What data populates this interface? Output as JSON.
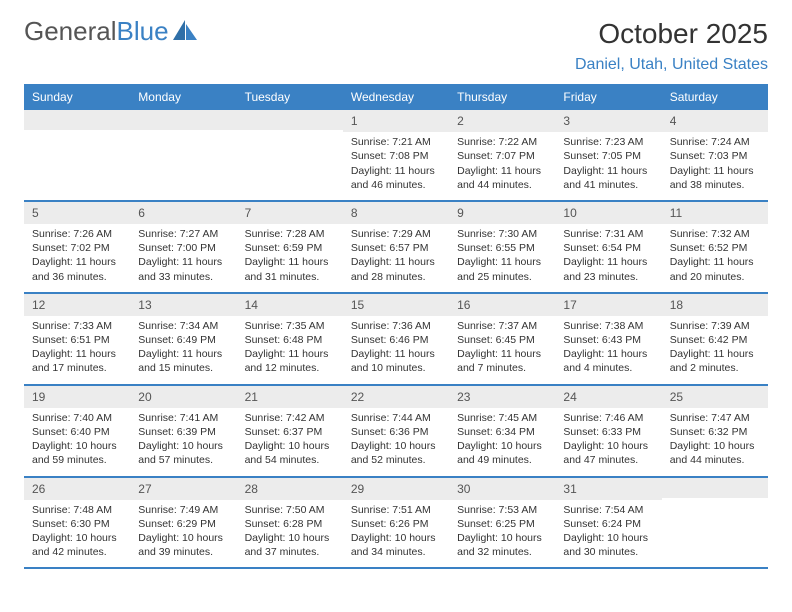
{
  "logo": {
    "word1": "General",
    "word2": "Blue"
  },
  "title": "October 2025",
  "location": "Daniel, Utah, United States",
  "colors": {
    "header_bg": "#3a81c4",
    "header_text": "#ffffff",
    "daynum_bg": "#ececec",
    "border": "#3a81c4",
    "text": "#333333",
    "link": "#3a81c4"
  },
  "day_names": [
    "Sunday",
    "Monday",
    "Tuesday",
    "Wednesday",
    "Thursday",
    "Friday",
    "Saturday"
  ],
  "weeks": [
    [
      {
        "n": "",
        "sr": "",
        "ss": "",
        "dl": ""
      },
      {
        "n": "",
        "sr": "",
        "ss": "",
        "dl": ""
      },
      {
        "n": "",
        "sr": "",
        "ss": "",
        "dl": ""
      },
      {
        "n": "1",
        "sr": "Sunrise: 7:21 AM",
        "ss": "Sunset: 7:08 PM",
        "dl": "Daylight: 11 hours and 46 minutes."
      },
      {
        "n": "2",
        "sr": "Sunrise: 7:22 AM",
        "ss": "Sunset: 7:07 PM",
        "dl": "Daylight: 11 hours and 44 minutes."
      },
      {
        "n": "3",
        "sr": "Sunrise: 7:23 AM",
        "ss": "Sunset: 7:05 PM",
        "dl": "Daylight: 11 hours and 41 minutes."
      },
      {
        "n": "4",
        "sr": "Sunrise: 7:24 AM",
        "ss": "Sunset: 7:03 PM",
        "dl": "Daylight: 11 hours and 38 minutes."
      }
    ],
    [
      {
        "n": "5",
        "sr": "Sunrise: 7:26 AM",
        "ss": "Sunset: 7:02 PM",
        "dl": "Daylight: 11 hours and 36 minutes."
      },
      {
        "n": "6",
        "sr": "Sunrise: 7:27 AM",
        "ss": "Sunset: 7:00 PM",
        "dl": "Daylight: 11 hours and 33 minutes."
      },
      {
        "n": "7",
        "sr": "Sunrise: 7:28 AM",
        "ss": "Sunset: 6:59 PM",
        "dl": "Daylight: 11 hours and 31 minutes."
      },
      {
        "n": "8",
        "sr": "Sunrise: 7:29 AM",
        "ss": "Sunset: 6:57 PM",
        "dl": "Daylight: 11 hours and 28 minutes."
      },
      {
        "n": "9",
        "sr": "Sunrise: 7:30 AM",
        "ss": "Sunset: 6:55 PM",
        "dl": "Daylight: 11 hours and 25 minutes."
      },
      {
        "n": "10",
        "sr": "Sunrise: 7:31 AM",
        "ss": "Sunset: 6:54 PM",
        "dl": "Daylight: 11 hours and 23 minutes."
      },
      {
        "n": "11",
        "sr": "Sunrise: 7:32 AM",
        "ss": "Sunset: 6:52 PM",
        "dl": "Daylight: 11 hours and 20 minutes."
      }
    ],
    [
      {
        "n": "12",
        "sr": "Sunrise: 7:33 AM",
        "ss": "Sunset: 6:51 PM",
        "dl": "Daylight: 11 hours and 17 minutes."
      },
      {
        "n": "13",
        "sr": "Sunrise: 7:34 AM",
        "ss": "Sunset: 6:49 PM",
        "dl": "Daylight: 11 hours and 15 minutes."
      },
      {
        "n": "14",
        "sr": "Sunrise: 7:35 AM",
        "ss": "Sunset: 6:48 PM",
        "dl": "Daylight: 11 hours and 12 minutes."
      },
      {
        "n": "15",
        "sr": "Sunrise: 7:36 AM",
        "ss": "Sunset: 6:46 PM",
        "dl": "Daylight: 11 hours and 10 minutes."
      },
      {
        "n": "16",
        "sr": "Sunrise: 7:37 AM",
        "ss": "Sunset: 6:45 PM",
        "dl": "Daylight: 11 hours and 7 minutes."
      },
      {
        "n": "17",
        "sr": "Sunrise: 7:38 AM",
        "ss": "Sunset: 6:43 PM",
        "dl": "Daylight: 11 hours and 4 minutes."
      },
      {
        "n": "18",
        "sr": "Sunrise: 7:39 AM",
        "ss": "Sunset: 6:42 PM",
        "dl": "Daylight: 11 hours and 2 minutes."
      }
    ],
    [
      {
        "n": "19",
        "sr": "Sunrise: 7:40 AM",
        "ss": "Sunset: 6:40 PM",
        "dl": "Daylight: 10 hours and 59 minutes."
      },
      {
        "n": "20",
        "sr": "Sunrise: 7:41 AM",
        "ss": "Sunset: 6:39 PM",
        "dl": "Daylight: 10 hours and 57 minutes."
      },
      {
        "n": "21",
        "sr": "Sunrise: 7:42 AM",
        "ss": "Sunset: 6:37 PM",
        "dl": "Daylight: 10 hours and 54 minutes."
      },
      {
        "n": "22",
        "sr": "Sunrise: 7:44 AM",
        "ss": "Sunset: 6:36 PM",
        "dl": "Daylight: 10 hours and 52 minutes."
      },
      {
        "n": "23",
        "sr": "Sunrise: 7:45 AM",
        "ss": "Sunset: 6:34 PM",
        "dl": "Daylight: 10 hours and 49 minutes."
      },
      {
        "n": "24",
        "sr": "Sunrise: 7:46 AM",
        "ss": "Sunset: 6:33 PM",
        "dl": "Daylight: 10 hours and 47 minutes."
      },
      {
        "n": "25",
        "sr": "Sunrise: 7:47 AM",
        "ss": "Sunset: 6:32 PM",
        "dl": "Daylight: 10 hours and 44 minutes."
      }
    ],
    [
      {
        "n": "26",
        "sr": "Sunrise: 7:48 AM",
        "ss": "Sunset: 6:30 PM",
        "dl": "Daylight: 10 hours and 42 minutes."
      },
      {
        "n": "27",
        "sr": "Sunrise: 7:49 AM",
        "ss": "Sunset: 6:29 PM",
        "dl": "Daylight: 10 hours and 39 minutes."
      },
      {
        "n": "28",
        "sr": "Sunrise: 7:50 AM",
        "ss": "Sunset: 6:28 PM",
        "dl": "Daylight: 10 hours and 37 minutes."
      },
      {
        "n": "29",
        "sr": "Sunrise: 7:51 AM",
        "ss": "Sunset: 6:26 PM",
        "dl": "Daylight: 10 hours and 34 minutes."
      },
      {
        "n": "30",
        "sr": "Sunrise: 7:53 AM",
        "ss": "Sunset: 6:25 PM",
        "dl": "Daylight: 10 hours and 32 minutes."
      },
      {
        "n": "31",
        "sr": "Sunrise: 7:54 AM",
        "ss": "Sunset: 6:24 PM",
        "dl": "Daylight: 10 hours and 30 minutes."
      },
      {
        "n": "",
        "sr": "",
        "ss": "",
        "dl": ""
      }
    ]
  ]
}
